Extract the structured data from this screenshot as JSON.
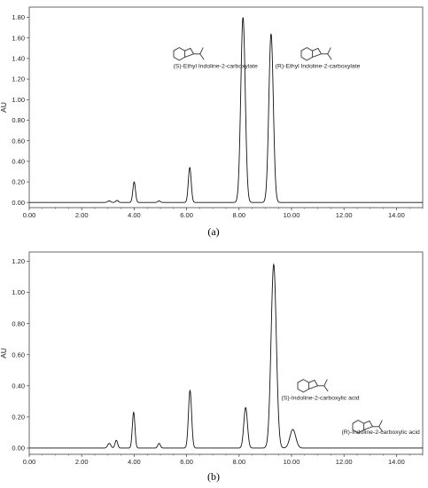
{
  "figure": {
    "panels": [
      {
        "label": "(a)"
      },
      {
        "label": "(b)"
      }
    ]
  },
  "chart_data": [
    {
      "type": "line",
      "title": "",
      "xlabel": "",
      "ylabel": "AU",
      "xlim": [
        0,
        15
      ],
      "ylim": [
        -0.05,
        1.9
      ],
      "xticks": [
        "0.00",
        "2.00",
        "4.00",
        "6.00",
        "8.00",
        "10.00",
        "12.00",
        "14.00"
      ],
      "yticks": [
        "0.00",
        "0.20",
        "0.40",
        "0.60",
        "0.80",
        "1.00",
        "1.20",
        "1.40",
        "1.60",
        "1.80"
      ],
      "grid": false,
      "baseline": 0.0,
      "peaks": [
        {
          "rt": 3.05,
          "height": 0.015,
          "width": 0.06
        },
        {
          "rt": 3.35,
          "height": 0.02,
          "width": 0.05
        },
        {
          "rt": 4.0,
          "height": 0.2,
          "width": 0.05
        },
        {
          "rt": 4.95,
          "height": 0.015,
          "width": 0.05
        },
        {
          "rt": 6.12,
          "height": 0.34,
          "width": 0.055
        },
        {
          "rt": 8.15,
          "height": 1.8,
          "width": 0.085
        },
        {
          "rt": 9.22,
          "height": 1.64,
          "width": 0.085
        }
      ],
      "annotations": [
        {
          "text": "(S)-Ethyl Indoline-2-carboxylate",
          "x": 7.1,
          "y": 1.31
        },
        {
          "text": "(R)-Ethyl Indoline-2-carboxylate",
          "x": 11.0,
          "y": 1.31
        }
      ]
    },
    {
      "type": "line",
      "title": "",
      "xlabel": "",
      "ylabel": "AU",
      "xlim": [
        0,
        15
      ],
      "ylim": [
        -0.04,
        1.26
      ],
      "xticks": [
        "0.00",
        "2.00",
        "4.00",
        "6.00",
        "8.00",
        "10.00",
        "12.00",
        "14.00"
      ],
      "yticks": [
        "0.00",
        "0.20",
        "0.40",
        "0.60",
        "0.80",
        "1.00",
        "1.20"
      ],
      "grid": false,
      "baseline": 0.0,
      "peaks": [
        {
          "rt": 3.05,
          "height": 0.03,
          "width": 0.06
        },
        {
          "rt": 3.32,
          "height": 0.05,
          "width": 0.05
        },
        {
          "rt": 3.98,
          "height": 0.23,
          "width": 0.05
        },
        {
          "rt": 4.95,
          "height": 0.03,
          "width": 0.05
        },
        {
          "rt": 6.13,
          "height": 0.37,
          "width": 0.06
        },
        {
          "rt": 8.25,
          "height": 0.26,
          "width": 0.07
        },
        {
          "rt": 9.32,
          "height": 1.18,
          "width": 0.1
        },
        {
          "rt": 10.05,
          "height": 0.12,
          "width": 0.11
        }
      ],
      "annotations": [
        {
          "text": "(S)-Indoline-2-carboxylic acid",
          "x": 11.1,
          "y": 0.31
        },
        {
          "text": "(R)-Indoline-2-carboxylic acid",
          "x": 13.4,
          "y": 0.09
        }
      ]
    }
  ]
}
